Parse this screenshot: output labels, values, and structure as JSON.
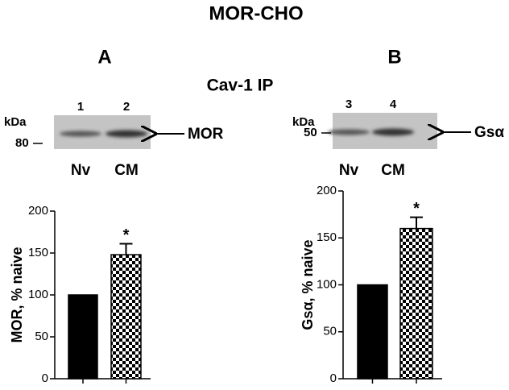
{
  "title": "MOR-CHO",
  "subtitle": "Cav-1 IP",
  "chart_data": [
    {
      "type": "bar",
      "panel": "A",
      "blot": {
        "unit": "kDa",
        "marker": 80,
        "lanes": [
          "1",
          "2"
        ],
        "lane_labels": [
          "Nv",
          "CM"
        ],
        "band": "MOR"
      },
      "ylabel": "MOR, % naive",
      "categories": [
        null,
        null
      ],
      "values": [
        100,
        148
      ],
      "errors": [
        null,
        13
      ],
      "significance": [
        null,
        "*"
      ],
      "fills": [
        "#000000",
        "checkered"
      ],
      "ylim": [
        0,
        200
      ],
      "yticks": [
        0,
        50,
        100,
        150,
        200
      ]
    },
    {
      "type": "bar",
      "panel": "B",
      "blot": {
        "unit": "kDa",
        "marker": 50,
        "lanes": [
          "3",
          "4"
        ],
        "lane_labels": [
          "Nv",
          "CM"
        ],
        "band": "Gsα"
      },
      "ylabel": "Gsα, % naive",
      "categories": [
        null,
        null
      ],
      "values": [
        100,
        160
      ],
      "errors": [
        null,
        12
      ],
      "significance": [
        null,
        "*"
      ],
      "fills": [
        "#000000",
        "checkered"
      ],
      "ylim": [
        0,
        200
      ],
      "yticks": [
        0,
        50,
        100,
        150,
        200
      ]
    }
  ]
}
